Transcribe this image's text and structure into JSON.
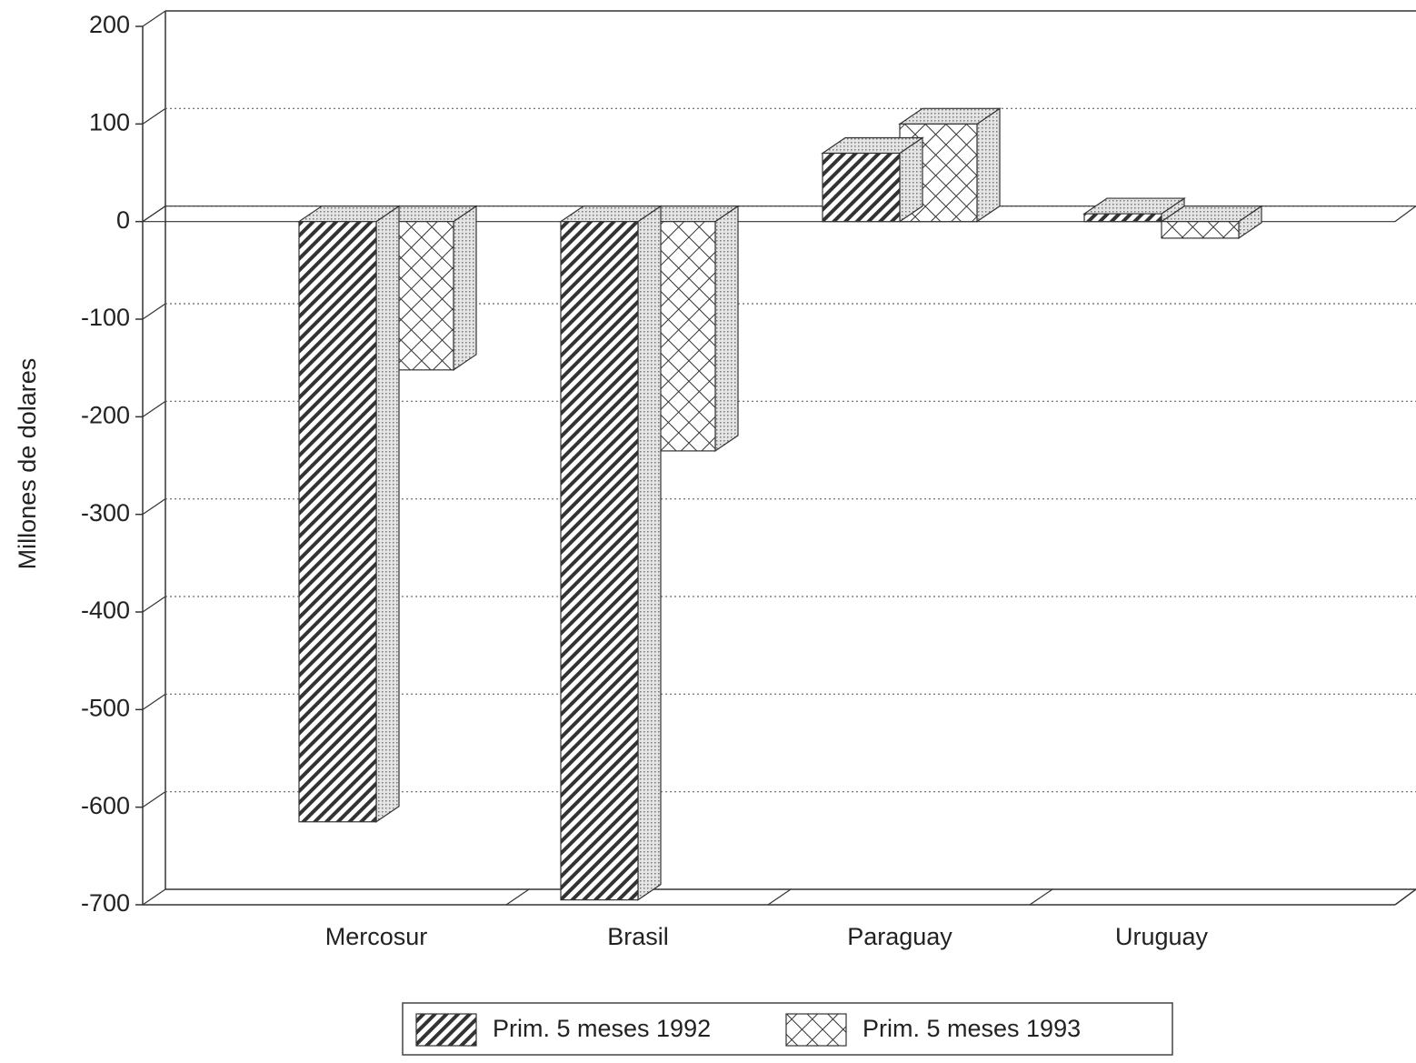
{
  "chart_data": {
    "type": "bar3d",
    "y_label": "Millones de dolares",
    "categories": [
      "Mercosur",
      "Brasil",
      "Paraguay",
      "Uruguay"
    ],
    "series": [
      {
        "name": "Prim. 5 meses 1992",
        "pattern": "diagonal",
        "values": [
          -615,
          -695,
          70,
          8
        ]
      },
      {
        "name": "Prim. 5 meses 1993",
        "pattern": "crosshatch",
        "values": [
          -152,
          -235,
          100,
          -17
        ]
      }
    ],
    "ylim": [
      -700,
      200
    ],
    "yticks": [
      -700,
      -600,
      -500,
      -400,
      -300,
      -200,
      -100,
      0,
      100,
      200
    ],
    "grid": true,
    "legend": "bottom"
  }
}
